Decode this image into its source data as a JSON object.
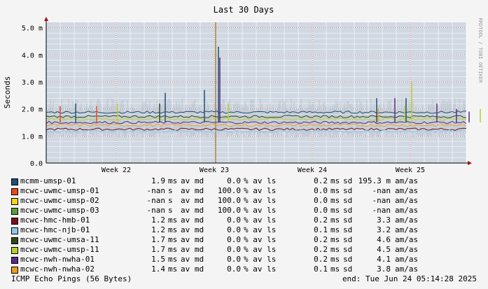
{
  "chart_data": {
    "type": "line",
    "title": "Last 30 Days",
    "ylabel": "Seconds",
    "watermark": "RRDTOOL / TOBI OETIKER",
    "ylim": [
      0,
      5.2
    ],
    "xlim": [
      0,
      30
    ],
    "y_ticks": [
      {
        "value": 0,
        "label": "0.0"
      },
      {
        "value": 1,
        "label": "1.0 m"
      },
      {
        "value": 2,
        "label": "2.0 m"
      },
      {
        "value": 3,
        "label": "3.0 m"
      },
      {
        "value": 4,
        "label": "4.0 m"
      },
      {
        "value": 5,
        "label": "5.0 m"
      }
    ],
    "x_ticks": [
      {
        "value": 5,
        "label": "Week 22"
      },
      {
        "value": 12,
        "label": "Week 23"
      },
      {
        "value": 19,
        "label": "Week 24"
      },
      {
        "value": 26,
        "label": "Week 25"
      }
    ],
    "grid": true,
    "series": [
      {
        "name": "mcmm-umsp-01",
        "color": "#1f4e79",
        "median_ms": "1.9",
        "loss": "0.0",
        "sd_ms": "0.2",
        "am_as": "195.3 m",
        "level": 1.88
      },
      {
        "name": "mcwc-uwmc-umsp-01",
        "color": "#e8491d",
        "median_ms": "-nan",
        "loss": "100.0",
        "sd_ms": "0.0",
        "am_as": "-nan",
        "level": null
      },
      {
        "name": "mcwc-uwmc-umsp-02",
        "color": "#f2d41c",
        "median_ms": "-nan",
        "loss": "100.0",
        "sd_ms": "0.0",
        "am_as": "-nan",
        "level": null
      },
      {
        "name": "mcwc-uwmc-umsp-03",
        "color": "#5a9e3a",
        "median_ms": "-nan",
        "loss": "100.0",
        "sd_ms": "0.0",
        "am_as": "-nan",
        "level": null
      },
      {
        "name": "mcwc-hmc-hmb-01",
        "color": "#7a1020",
        "median_ms": "1.2",
        "loss": "0.0",
        "sd_ms": "0.2",
        "am_as": "3.3",
        "level": 1.25
      },
      {
        "name": "mcwc-hmc-njb-01",
        "color": "#8ec8ee",
        "median_ms": "1.2",
        "loss": "0.0",
        "sd_ms": "0.1",
        "am_as": "3.2",
        "level": 1.18
      },
      {
        "name": "mcwc-uwmc-umsa-11",
        "color": "#2f4a1a",
        "median_ms": "1.7",
        "loss": "0.0",
        "sd_ms": "0.2",
        "am_as": "4.6",
        "level": 1.72
      },
      {
        "name": "mcwc-uwmc-umsp-11",
        "color": "#b8cf2a",
        "median_ms": "1.7",
        "loss": "0.0",
        "sd_ms": "0.2",
        "am_as": "4.5",
        "level": 1.62
      },
      {
        "name": "mcwc-nwh-nwha-01",
        "color": "#5a2a8a",
        "median_ms": "1.5",
        "loss": "0.0",
        "sd_ms": "0.2",
        "am_as": "4.1",
        "level": 1.5
      },
      {
        "name": "mcwc-nwh-nwha-02",
        "color": "#f29b1c",
        "median_ms": "1.4",
        "loss": "0.0",
        "sd_ms": "0.1",
        "am_as": "3.8",
        "level": 1.4
      }
    ],
    "spikes": [
      {
        "x": 1.0,
        "value": 2.1,
        "color": "#e8491d"
      },
      {
        "x": 2.1,
        "value": 2.2,
        "color": "#1f4e79"
      },
      {
        "x": 3.6,
        "value": 2.1,
        "color": "#e8491d"
      },
      {
        "x": 5.1,
        "value": 2.2,
        "color": "#b8cf2a"
      },
      {
        "x": 8.5,
        "value": 2.6,
        "color": "#1f4e79"
      },
      {
        "x": 8.1,
        "value": 2.2,
        "color": "#2f4a1a"
      },
      {
        "x": 11.3,
        "value": 2.7,
        "color": "#1f4e79"
      },
      {
        "x": 12.3,
        "value": 4.3,
        "color": "#1f4e79"
      },
      {
        "x": 12.4,
        "value": 3.9,
        "color": "#5a2a8a"
      },
      {
        "x": 13.0,
        "value": 2.2,
        "color": "#b8cf2a"
      },
      {
        "x": 23.6,
        "value": 2.4,
        "color": "#1f4e79"
      },
      {
        "x": 23.7,
        "value": 2.0,
        "color": "#f29b1c"
      },
      {
        "x": 24.9,
        "value": 2.4,
        "color": "#5a2a8a"
      },
      {
        "x": 25.7,
        "value": 2.4,
        "color": "#1f4e79"
      },
      {
        "x": 25.6,
        "value": 2.1,
        "color": "#b8cf2a"
      },
      {
        "x": 26.1,
        "value": 3.0,
        "color": "#b8cf2a"
      },
      {
        "x": 27.9,
        "value": 2.2,
        "color": "#5a2a8a"
      },
      {
        "x": 29.3,
        "value": 2.0,
        "color": "#5a2a8a"
      },
      {
        "x": 30.2,
        "value": 1.9,
        "color": "#5a2a8a"
      },
      {
        "x": 31.0,
        "value": 2.0,
        "color": "#b8cf2a"
      }
    ],
    "marker_line": {
      "x": 12.1,
      "color": "#a08a40"
    }
  },
  "legend_units": {
    "median": "ms av md",
    "loss": "% av ls",
    "sd": "ms sd",
    "amas": "am/as"
  },
  "footer": {
    "left": "ICMP Echo Pings (56 Bytes)",
    "right": "end: Tue Jun 24 05:14:28 2025"
  }
}
